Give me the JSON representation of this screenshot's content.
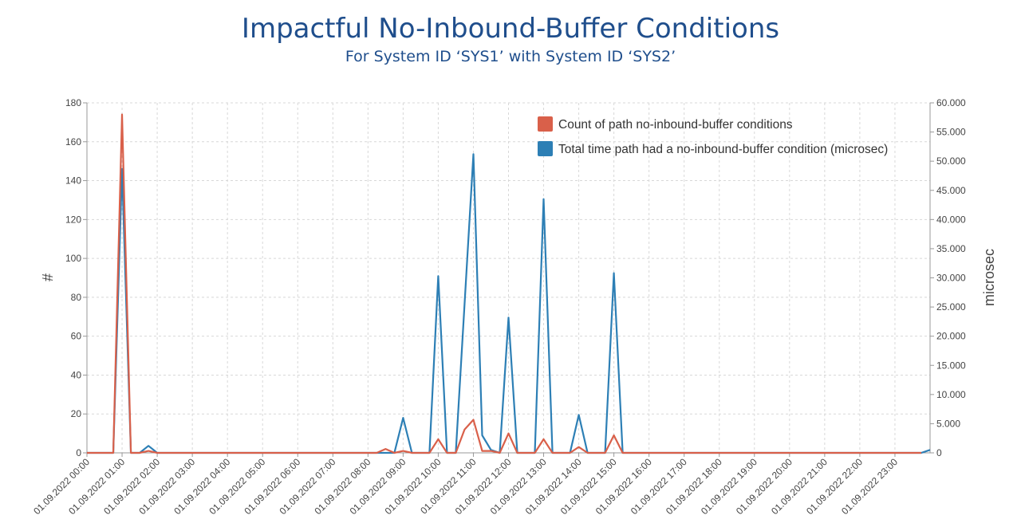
{
  "chart_data": {
    "type": "line",
    "title": "Impactful No-Inbound-Buffer Conditions",
    "subtitle": "For System ID ‘SYS1’ with System ID ‘SYS2’",
    "ylabel_left": "#",
    "ylabel_right": "microsec",
    "ylim_left": [
      0,
      180
    ],
    "ylim_right": [
      0,
      60000
    ],
    "yticks_left": [
      "0",
      "20",
      "40",
      "60",
      "80",
      "100",
      "120",
      "140",
      "160",
      "180"
    ],
    "yticks_right": [
      "0",
      "5.000",
      "10.000",
      "15.000",
      "20.000",
      "25.000",
      "30.000",
      "35.000",
      "40.000",
      "45.000",
      "50.000",
      "55.000",
      "60.000"
    ],
    "x_tick_labels": [
      "01.09.2022 00:00",
      "01.09.2022 01:00",
      "01.09.2022 02:00",
      "01.09.2022 03:00",
      "01.09.2022 04:00",
      "01.09.2022 05:00",
      "01.09.2022 06:00",
      "01.09.2022 07:00",
      "01.09.2022 08:00",
      "01.09.2022 09:00",
      "01.09.2022 10:00",
      "01.09.2022 11:00",
      "01.09.2022 12:00",
      "01.09.2022 13:00",
      "01.09.2022 14:00",
      "01.09.2022 15:00",
      "01.09.2022 16:00",
      "01.09.2022 17:00",
      "01.09.2022 18:00",
      "01.09.2022 19:00",
      "01.09.2022 20:00",
      "01.09.2022 21:00",
      "01.09.2022 22:00",
      "01.09.2022 23:00"
    ],
    "grid": true,
    "legend_position": "top-right",
    "series": [
      {
        "name": "Count of path no-inbound-buffer conditions",
        "axis": "left",
        "color": "#d9604a",
        "points": [
          [
            "01.09.2022 00:00",
            0
          ],
          [
            "01.09.2022 00:45",
            0
          ],
          [
            "01.09.2022 01:00",
            174
          ],
          [
            "01.09.2022 01:15",
            0
          ],
          [
            "01.09.2022 01:30",
            0
          ],
          [
            "01.09.2022 01:45",
            1
          ],
          [
            "01.09.2022 02:00",
            0
          ],
          [
            "01.09.2022 08:15",
            0
          ],
          [
            "01.09.2022 08:30",
            2
          ],
          [
            "01.09.2022 08:45",
            0
          ],
          [
            "01.09.2022 09:00",
            1
          ],
          [
            "01.09.2022 09:15",
            0
          ],
          [
            "01.09.2022 09:45",
            0
          ],
          [
            "01.09.2022 10:00",
            7
          ],
          [
            "01.09.2022 10:15",
            0
          ],
          [
            "01.09.2022 10:30",
            0
          ],
          [
            "01.09.2022 10:45",
            12
          ],
          [
            "01.09.2022 11:00",
            17
          ],
          [
            "01.09.2022 11:15",
            1
          ],
          [
            "01.09.2022 11:30",
            1
          ],
          [
            "01.09.2022 11:45",
            0
          ],
          [
            "01.09.2022 12:00",
            10
          ],
          [
            "01.09.2022 12:15",
            0
          ],
          [
            "01.09.2022 12:45",
            0
          ],
          [
            "01.09.2022 13:00",
            7
          ],
          [
            "01.09.2022 13:15",
            0
          ],
          [
            "01.09.2022 13:30",
            0
          ],
          [
            "01.09.2022 13:45",
            0
          ],
          [
            "01.09.2022 14:00",
            3
          ],
          [
            "01.09.2022 14:15",
            0
          ],
          [
            "01.09.2022 14:45",
            0
          ],
          [
            "01.09.2022 15:00",
            9
          ],
          [
            "01.09.2022 15:15",
            0
          ],
          [
            "01.09.2022 23:45",
            0
          ]
        ]
      },
      {
        "name": "Total time path had a no-inbound-buffer condition (microsec)",
        "axis": "right",
        "color": "#2d7fb5",
        "points": [
          [
            "01.09.2022 00:00",
            0
          ],
          [
            "01.09.2022 00:45",
            0
          ],
          [
            "01.09.2022 01:00",
            48700
          ],
          [
            "01.09.2022 01:15",
            0
          ],
          [
            "01.09.2022 01:30",
            0
          ],
          [
            "01.09.2022 01:45",
            1200
          ],
          [
            "01.09.2022 02:00",
            0
          ],
          [
            "01.09.2022 08:45",
            0
          ],
          [
            "01.09.2022 09:00",
            6000
          ],
          [
            "01.09.2022 09:15",
            0
          ],
          [
            "01.09.2022 09:45",
            0
          ],
          [
            "01.09.2022 10:00",
            30300
          ],
          [
            "01.09.2022 10:15",
            0
          ],
          [
            "01.09.2022 10:30",
            0
          ],
          [
            "01.09.2022 11:00",
            51200
          ],
          [
            "01.09.2022 11:15",
            3000
          ],
          [
            "01.09.2022 11:30",
            500
          ],
          [
            "01.09.2022 11:45",
            0
          ],
          [
            "01.09.2022 12:00",
            23200
          ],
          [
            "01.09.2022 12:15",
            0
          ],
          [
            "01.09.2022 12:45",
            0
          ],
          [
            "01.09.2022 13:00",
            43500
          ],
          [
            "01.09.2022 13:15",
            0
          ],
          [
            "01.09.2022 13:45",
            0
          ],
          [
            "01.09.2022 14:00",
            6500
          ],
          [
            "01.09.2022 14:15",
            0
          ],
          [
            "01.09.2022 14:45",
            0
          ],
          [
            "01.09.2022 15:00",
            30800
          ],
          [
            "01.09.2022 15:15",
            0
          ],
          [
            "01.09.2022 23:45",
            0
          ],
          [
            "01.09.2022 24:00",
            500
          ]
        ]
      }
    ]
  }
}
